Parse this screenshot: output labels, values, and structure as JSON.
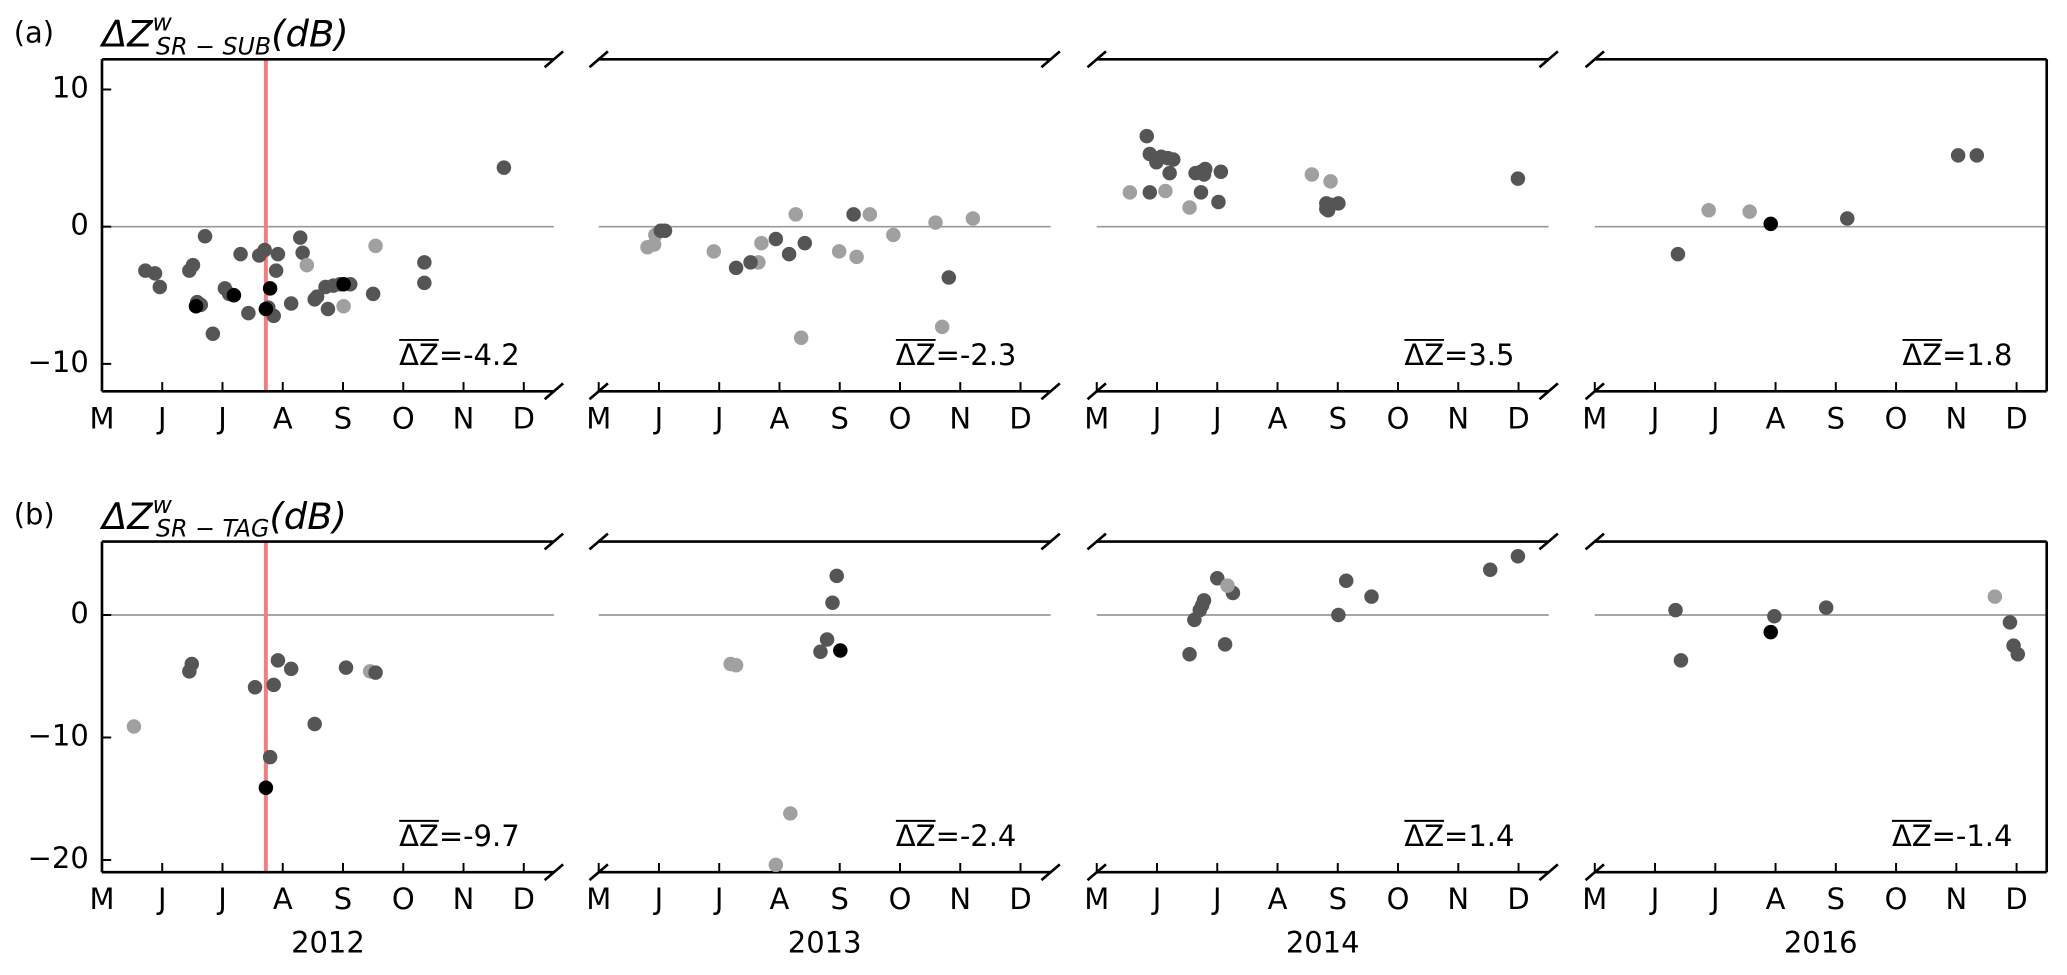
{
  "chart_data": [
    {
      "type": "scatter",
      "panel_label": "(a)",
      "ylabel": {
        "base": "ΔZ",
        "sup": "w",
        "sub": "SR − SUB",
        "unit": "(dB)"
      },
      "annotation": "ΔZ=-4.2",
      "xlim": [
        5,
        12.5
      ],
      "ylim": [
        -12,
        12.2
      ],
      "xticks": [
        {
          "value": 5,
          "label": "M"
        },
        {
          "value": 6,
          "label": "J"
        },
        {
          "value": 7,
          "label": "J"
        },
        {
          "value": 8,
          "label": "A"
        },
        {
          "value": 9,
          "label": "S"
        },
        {
          "value": 10,
          "label": "O"
        },
        {
          "value": 11,
          "label": "N"
        },
        {
          "value": 12,
          "label": "D"
        }
      ],
      "yticks": [
        {
          "value": -10,
          "label": "−10"
        },
        0,
        10
      ],
      "hline": 0,
      "vline": 7.72,
      "vline_color": "#f08080",
      "series": [
        {
          "color": "#555555",
          "x": [
            5.72,
            5.88,
            5.96,
            6.45,
            6.51,
            6.58,
            6.64,
            6.71,
            6.84,
            7.04,
            7.11,
            7.3,
            7.43,
            7.61,
            7.7,
            7.76,
            7.85,
            7.89,
            7.92,
            8.14,
            8.29,
            8.33,
            8.53,
            8.57,
            8.71,
            8.75,
            8.84,
            8.95,
            9.12,
            9.5,
            10.35,
            10.35,
            11.67
          ],
          "values": [
            -3.2,
            -3.4,
            -4.4,
            -3.2,
            -2.8,
            -5.5,
            -5.7,
            -0.7,
            -7.8,
            -4.5,
            -4.9,
            -2.0,
            -6.3,
            -2.1,
            -1.7,
            -5.9,
            -6.5,
            -3.2,
            -2.0,
            -5.6,
            -0.8,
            -1.9,
            -5.3,
            -5.1,
            -4.4,
            -6.0,
            -4.3,
            -4.2,
            -4.2,
            -4.9,
            -2.6,
            -4.1,
            4.3
          ]
        },
        {
          "color": "#a0a0a0",
          "x": [
            8.4,
            9.01,
            9.54
          ],
          "values": [
            -2.8,
            -5.8,
            -1.4
          ]
        },
        {
          "color": "#000000",
          "x": [
            6.56,
            7.19,
            7.72,
            7.79,
            9.01
          ],
          "values": [
            -5.8,
            -5.0,
            -6.0,
            -4.5,
            -4.2
          ]
        }
      ]
    },
    {
      "type": "scatter",
      "annotation": "ΔZ=-2.3",
      "xlim": [
        5,
        12.5
      ],
      "ylim": [
        -12,
        12.2
      ],
      "xticks": [
        {
          "value": 5,
          "label": "M"
        },
        {
          "value": 6,
          "label": "J"
        },
        {
          "value": 7,
          "label": "J"
        },
        {
          "value": 8,
          "label": "A"
        },
        {
          "value": 9,
          "label": "S"
        },
        {
          "value": 10,
          "label": "O"
        },
        {
          "value": 11,
          "label": "N"
        },
        {
          "value": 12,
          "label": "D"
        }
      ],
      "hline": 0,
      "series": [
        {
          "color": "#a0a0a0",
          "x": [
            5.81,
            5.92,
            5.94,
            6.91,
            7.65,
            7.7,
            8.27,
            8.36,
            8.99,
            9.28,
            9.5,
            9.89,
            10.59,
            10.7,
            11.21
          ],
          "values": [
            -1.5,
            -1.3,
            -0.6,
            -1.8,
            -2.6,
            -1.2,
            0.9,
            -8.1,
            -1.8,
            -2.2,
            0.9,
            -0.6,
            0.3,
            -7.3,
            0.6
          ]
        },
        {
          "color": "#555555",
          "x": [
            6.03,
            6.1,
            7.28,
            7.52,
            7.94,
            8.16,
            8.42,
            9.23,
            10.81
          ],
          "values": [
            -0.3,
            -0.3,
            -3.0,
            -2.6,
            -0.9,
            -2.0,
            -1.2,
            0.9,
            -3.7
          ]
        }
      ]
    },
    {
      "type": "scatter",
      "annotation": "ΔZ=3.5",
      "xlim": [
        5,
        12.5
      ],
      "ylim": [
        -12,
        12.2
      ],
      "xticks": [
        {
          "value": 5,
          "label": "M"
        },
        {
          "value": 6,
          "label": "J"
        },
        {
          "value": 7,
          "label": "J"
        },
        {
          "value": 8,
          "label": "A"
        },
        {
          "value": 9,
          "label": "S"
        },
        {
          "value": 10,
          "label": "O"
        },
        {
          "value": 11,
          "label": "N"
        },
        {
          "value": 12,
          "label": "D"
        }
      ],
      "hline": 0,
      "series": [
        {
          "color": "#555555",
          "x": [
            5.83,
            5.88,
            5.88,
            5.99,
            6.07,
            6.18,
            6.21,
            6.27,
            6.64,
            6.73,
            6.78,
            6.8,
            6.73,
            7.02,
            7.06,
            8.81,
            8.81,
            8.84,
            8.88,
            9.01,
            11.99
          ],
          "values": [
            6.6,
            5.3,
            2.5,
            4.7,
            5.1,
            5.0,
            3.9,
            4.9,
            3.9,
            4.0,
            3.8,
            4.2,
            2.5,
            1.8,
            4.0,
            1.3,
            1.7,
            1.2,
            1.6,
            1.7,
            3.5
          ]
        },
        {
          "color": "#a0a0a0",
          "x": [
            5.55,
            6.14,
            6.54,
            8.57,
            8.88
          ],
          "values": [
            2.5,
            2.6,
            1.4,
            3.8,
            3.3
          ]
        }
      ]
    },
    {
      "type": "scatter",
      "annotation": "ΔZ=1.8",
      "xlim": [
        5,
        12.5
      ],
      "ylim": [
        -12,
        12.2
      ],
      "xticks": [
        {
          "value": 5,
          "label": "M"
        },
        {
          "value": 6,
          "label": "J"
        },
        {
          "value": 7,
          "label": "J"
        },
        {
          "value": 8,
          "label": "A"
        },
        {
          "value": 9,
          "label": "S"
        },
        {
          "value": 10,
          "label": "O"
        },
        {
          "value": 11,
          "label": "N"
        },
        {
          "value": 12,
          "label": "D"
        }
      ],
      "hline": 0,
      "series": [
        {
          "color": "#555555",
          "x": [
            6.38,
            9.19,
            11.03,
            11.34
          ],
          "values": [
            -2.0,
            0.6,
            5.2,
            5.2
          ]
        },
        {
          "color": "#000000",
          "x": [
            7.92
          ],
          "values": [
            0.2
          ]
        },
        {
          "color": "#a0a0a0",
          "x": [
            6.89,
            7.57
          ],
          "values": [
            1.2,
            1.1
          ]
        }
      ]
    },
    {
      "type": "scatter",
      "panel_label": "(b)",
      "ylabel": {
        "base": "ΔZ",
        "sup": "w",
        "sub": "SR − TAG",
        "unit": "(dB)"
      },
      "annotation": "ΔZ=-9.7",
      "year": "2012",
      "xlim": [
        5,
        12.5
      ],
      "ylim": [
        -21,
        6
      ],
      "xticks": [
        {
          "value": 5,
          "label": "M"
        },
        {
          "value": 6,
          "label": "J"
        },
        {
          "value": 7,
          "label": "J"
        },
        {
          "value": 8,
          "label": "A"
        },
        {
          "value": 9,
          "label": "S"
        },
        {
          "value": 10,
          "label": "O"
        },
        {
          "value": 11,
          "label": "N"
        },
        {
          "value": 12,
          "label": "D"
        }
      ],
      "yticks": [
        {
          "value": -20,
          "label": "−20"
        },
        {
          "value": -10,
          "label": "−10"
        },
        0
      ],
      "hline": 0,
      "vline": 7.72,
      "vline_color": "#f08080",
      "series": [
        {
          "color": "#a0a0a0",
          "x": [
            5.53,
            9.45
          ],
          "values": [
            -9.1,
            -4.6
          ]
        },
        {
          "color": "#555555",
          "x": [
            6.45,
            6.49,
            7.54,
            7.85,
            7.79,
            7.92,
            8.14,
            8.53,
            9.05,
            9.54
          ],
          "values": [
            -4.6,
            -4.0,
            -5.9,
            -5.7,
            -11.6,
            -3.7,
            -4.4,
            -8.9,
            -4.3,
            -4.7
          ]
        },
        {
          "color": "#000000",
          "x": [
            7.72
          ],
          "values": [
            -14.1
          ]
        }
      ]
    },
    {
      "type": "scatter",
      "annotation": "ΔZ=-2.4",
      "year": "2013",
      "xlim": [
        5,
        12.5
      ],
      "ylim": [
        -21,
        6
      ],
      "xticks": [
        {
          "value": 5,
          "label": "M"
        },
        {
          "value": 6,
          "label": "J"
        },
        {
          "value": 7,
          "label": "J"
        },
        {
          "value": 8,
          "label": "A"
        },
        {
          "value": 9,
          "label": "S"
        },
        {
          "value": 10,
          "label": "O"
        },
        {
          "value": 11,
          "label": "N"
        },
        {
          "value": 12,
          "label": "D"
        }
      ],
      "hline": 0,
      "series": [
        {
          "color": "#a0a0a0",
          "x": [
            7.19,
            7.28,
            8.18,
            7.94
          ],
          "values": [
            -4.0,
            -4.1,
            -16.2,
            -20.4
          ]
        },
        {
          "color": "#555555",
          "x": [
            8.95,
            8.88,
            8.79,
            8.68
          ],
          "values": [
            3.2,
            1.0,
            -2.0,
            -3.0
          ]
        },
        {
          "color": "#000000",
          "x": [
            9.01
          ],
          "values": [
            -2.9
          ]
        }
      ]
    },
    {
      "type": "scatter",
      "annotation": "ΔZ=1.4",
      "year": "2014",
      "xlim": [
        5,
        12.5
      ],
      "ylim": [
        -21,
        6
      ],
      "xticks": [
        {
          "value": 5,
          "label": "M"
        },
        {
          "value": 6,
          "label": "J"
        },
        {
          "value": 7,
          "label": "J"
        },
        {
          "value": 8,
          "label": "A"
        },
        {
          "value": 9,
          "label": "S"
        },
        {
          "value": 10,
          "label": "O"
        },
        {
          "value": 11,
          "label": "N"
        },
        {
          "value": 12,
          "label": "D"
        }
      ],
      "hline": 0,
      "series": [
        {
          "color": "#555555",
          "x": [
            6.54,
            6.62,
            6.75,
            6.78,
            6.71,
            7.0,
            7.13,
            7.26,
            9.01,
            9.14,
            9.56,
            11.53,
            11.99
          ],
          "values": [
            -3.2,
            -0.4,
            0.8,
            1.2,
            0.4,
            3.0,
            -2.4,
            1.8,
            0.0,
            2.8,
            1.5,
            3.7,
            4.8
          ]
        },
        {
          "color": "#a0a0a0",
          "x": [
            7.17
          ],
          "values": [
            2.4
          ]
        }
      ]
    },
    {
      "type": "scatter",
      "annotation": "ΔZ=-1.4",
      "year": "2016",
      "xlim": [
        5,
        12.5
      ],
      "ylim": [
        -21,
        6
      ],
      "xticks": [
        {
          "value": 5,
          "label": "M"
        },
        {
          "value": 6,
          "label": "J"
        },
        {
          "value": 7,
          "label": "J"
        },
        {
          "value": 8,
          "label": "A"
        },
        {
          "value": 9,
          "label": "S"
        },
        {
          "value": 10,
          "label": "O"
        },
        {
          "value": 11,
          "label": "N"
        },
        {
          "value": 12,
          "label": "D"
        }
      ],
      "hline": 0,
      "series": [
        {
          "color": "#555555",
          "x": [
            6.34,
            6.43,
            7.98,
            8.84,
            11.89,
            11.95,
            12.02
          ],
          "values": [
            0.4,
            -3.7,
            -0.1,
            0.6,
            -0.6,
            -2.5,
            -3.2
          ]
        },
        {
          "color": "#000000",
          "x": [
            7.92
          ],
          "values": [
            -1.4
          ]
        },
        {
          "color": "#a0a0a0",
          "x": [
            11.64
          ],
          "values": [
            1.5
          ]
        }
      ]
    }
  ]
}
